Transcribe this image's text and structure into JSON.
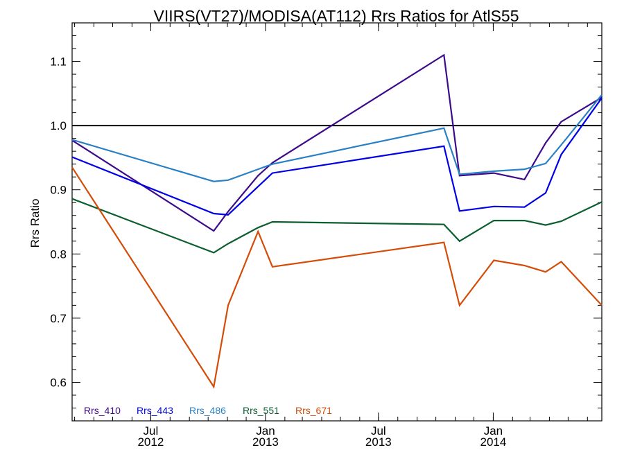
{
  "chart_data": {
    "type": "line",
    "title": "VIIRS(VT27)/MODISA(AT112)  Rrs Ratios for AtlS55",
    "ylabel": "Rrs Ratio",
    "xlabel": "",
    "xlim": [
      "2012-02-26",
      "2014-06-24"
    ],
    "ylim": [
      0.54,
      1.16
    ],
    "reference_line": 1.0,
    "y_ticks": [
      0.6,
      0.7,
      0.8,
      0.9,
      1.0,
      1.1
    ],
    "y_tick_labels": [
      "0.6",
      "0.7",
      "0.8",
      "0.9",
      "1.0",
      "1.1"
    ],
    "x_ticks": [
      {
        "date": "2012-07-01",
        "month": "Jul",
        "year": "2012"
      },
      {
        "date": "2013-01-01",
        "month": "Jan",
        "year": "2013"
      },
      {
        "date": "2013-07-01",
        "month": "Jul",
        "year": "2013"
      },
      {
        "date": "2014-01-01",
        "month": "Jan",
        "year": "2014"
      }
    ],
    "x": [
      "2012-02-26",
      "2012-10-10",
      "2012-11-02",
      "2012-12-20",
      "2013-01-12",
      "2013-10-14",
      "2013-11-08",
      "2014-01-02",
      "2014-02-20",
      "2014-03-26",
      "2014-04-20",
      "2014-06-24"
    ],
    "series": [
      {
        "name": "Rrs_410",
        "color": "#3d0a8a",
        "values": [
          0.977,
          0.836,
          0.866,
          0.922,
          0.942,
          1.11,
          0.922,
          0.926,
          0.916,
          0.973,
          1.006,
          1.044
        ]
      },
      {
        "name": "Rrs_443",
        "color": "#0000e6",
        "values": [
          0.951,
          0.863,
          0.861,
          0.905,
          0.926,
          0.968,
          0.867,
          0.874,
          0.873,
          0.895,
          0.955,
          1.043
        ]
      },
      {
        "name": "Rrs_486",
        "color": "#2a80c4",
        "values": [
          0.978,
          0.913,
          0.915,
          0.932,
          0.94,
          0.996,
          0.924,
          0.929,
          0.932,
          0.941,
          0.97,
          1.048
        ]
      },
      {
        "name": "Rrs_551",
        "color": "#0b5e2e",
        "values": [
          0.886,
          0.802,
          0.816,
          0.841,
          0.85,
          0.846,
          0.82,
          0.852,
          0.852,
          0.845,
          0.851,
          0.881
        ]
      },
      {
        "name": "Rrs_671",
        "color": "#d44c08",
        "values": [
          0.935,
          0.593,
          0.72,
          0.835,
          0.78,
          0.818,
          0.72,
          0.79,
          0.782,
          0.772,
          0.788,
          0.72
        ]
      }
    ],
    "legend_position": "bottom-left",
    "grid": false
  }
}
